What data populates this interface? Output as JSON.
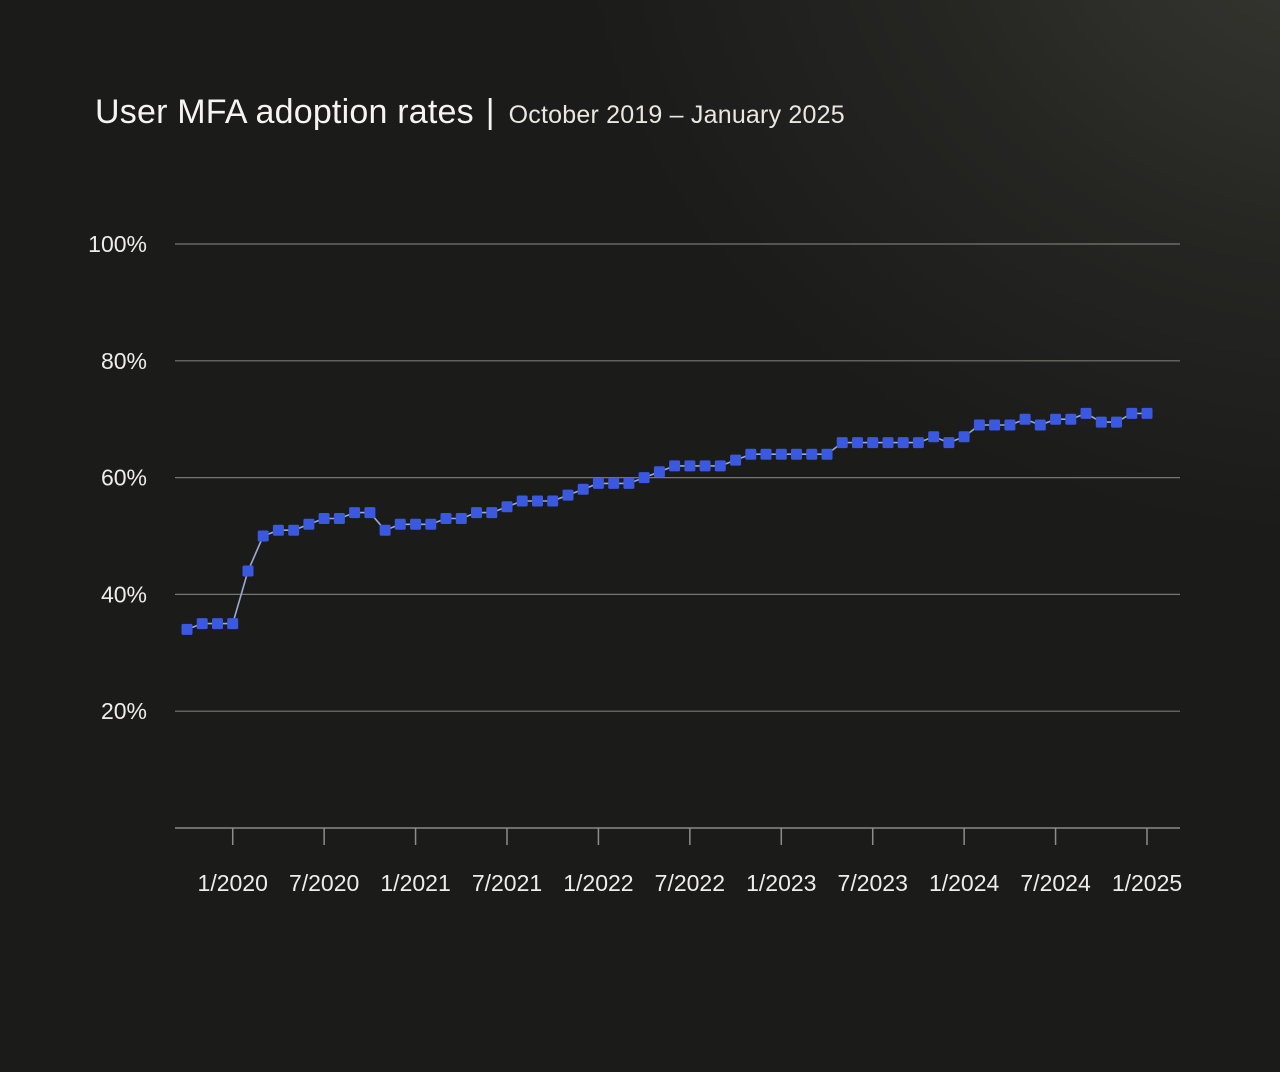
{
  "page": {
    "title": "User MFA adoption rates",
    "title_separator": "|",
    "subtitle": "October 2019 – January 2025"
  },
  "colors": {
    "background_dark": "#1b1b1a",
    "background_glow": "#3a3a34",
    "text_primary": "#f5f4f0",
    "text_secondary": "#e9e7e1",
    "axis_label": "#eeede9",
    "gridline": "#8d8d89",
    "axis_line": "#6e6e6a",
    "tick_mark": "#8d8d89",
    "marker_blue": "#3a58e0",
    "line_blue": "#9aaad2"
  },
  "chart_data": {
    "type": "line",
    "title": "User MFA adoption rates",
    "subtitle_range": "October 2019 – January 2025",
    "unit": "%",
    "interval": "monthly",
    "start_month": "10/2019",
    "end_month": "1/2025",
    "marker": "square",
    "grid": "horizontal-only",
    "legend": "none",
    "values": [
      34,
      35,
      35,
      35,
      44,
      50,
      51,
      51,
      52,
      53,
      53,
      54,
      54,
      51,
      52,
      52,
      52,
      53,
      53,
      54,
      54,
      55,
      56,
      56,
      56,
      57,
      58,
      59,
      59,
      59,
      60,
      61,
      62,
      62,
      62,
      62,
      63,
      64,
      64,
      64,
      64,
      64,
      64,
      66,
      66,
      66,
      66,
      66,
      66,
      67,
      66,
      67,
      69,
      69,
      69,
      70,
      69,
      70,
      70,
      71,
      69.5,
      69.5,
      71,
      71
    ],
    "x_axis": {
      "tick_labels": [
        "1/2020",
        "7/2020",
        "1/2021",
        "7/2021",
        "1/2022",
        "7/2022",
        "1/2023",
        "7/2023",
        "1/2024",
        "7/2024",
        "1/2025"
      ],
      "tick_month_indices": [
        3,
        9,
        15,
        21,
        27,
        33,
        39,
        45,
        51,
        57,
        63
      ]
    },
    "y_axis": {
      "tick_labels": [
        "20%",
        "40%",
        "60%",
        "80%",
        "100%"
      ],
      "tick_values": [
        20,
        40,
        60,
        80,
        100
      ],
      "range": [
        0,
        100
      ]
    }
  }
}
